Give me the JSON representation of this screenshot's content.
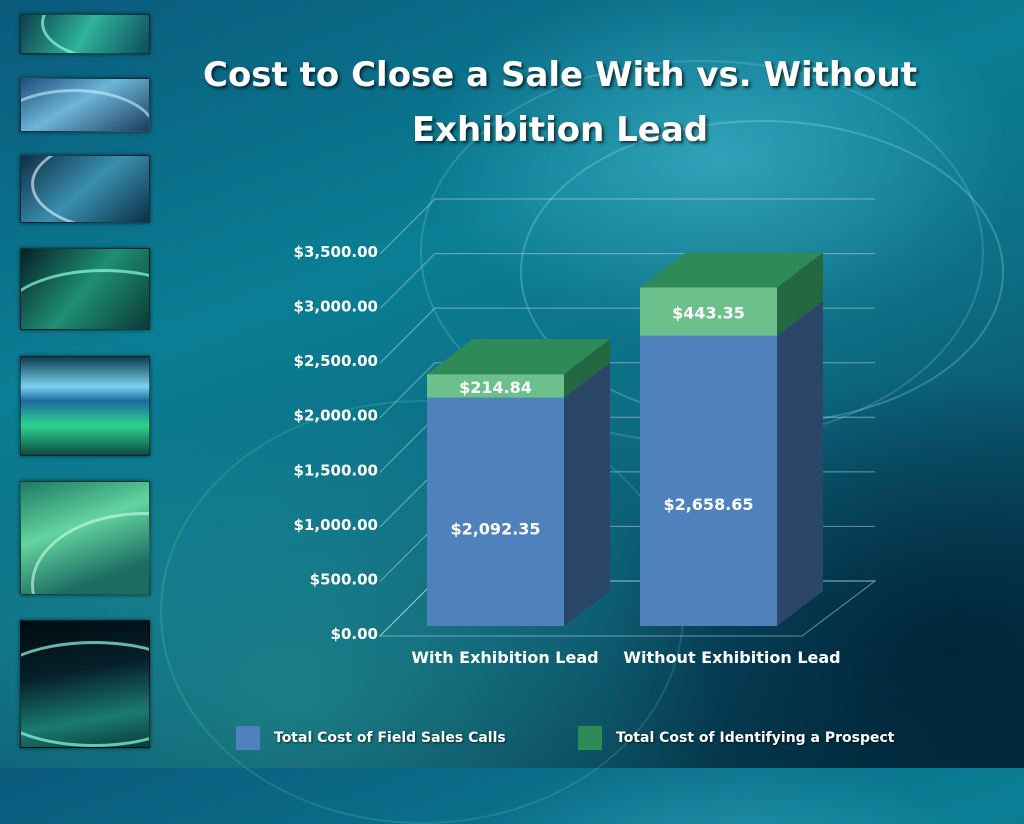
{
  "slide": {
    "title": "Cost to Close a Sale With vs. Without Exhibition Lead"
  },
  "colors": {
    "field_sales": "#4f81bd",
    "identify_prospect": "#2e8b57",
    "prospect_top_segment": "#6cc08b"
  },
  "chart_data": {
    "type": "bar",
    "stacked": true,
    "three_d": true,
    "title": "Cost to Close a Sale With vs. Without Exhibition Lead",
    "categories": [
      "With Exhibition Lead",
      "Without Exhibition Lead"
    ],
    "series": [
      {
        "name": "Total Cost of Field Sales Calls",
        "values": [
          2092.35,
          2658.65
        ],
        "labels": [
          "$2,092.35",
          "$2,658.65"
        ]
      },
      {
        "name": "Total Cost of Identifying a Prospect",
        "values": [
          214.84,
          443.35
        ],
        "labels": [
          "$214.84",
          "$443.35"
        ]
      }
    ],
    "y_ticks": [
      "$0.00",
      "$500.00",
      "$1,000.00",
      "$1,500.00",
      "$2,000.00",
      "$2,500.00",
      "$3,000.00",
      "$3,500.00"
    ],
    "ylim": [
      0,
      3500
    ],
    "grid": true,
    "legend_position": "bottom"
  }
}
